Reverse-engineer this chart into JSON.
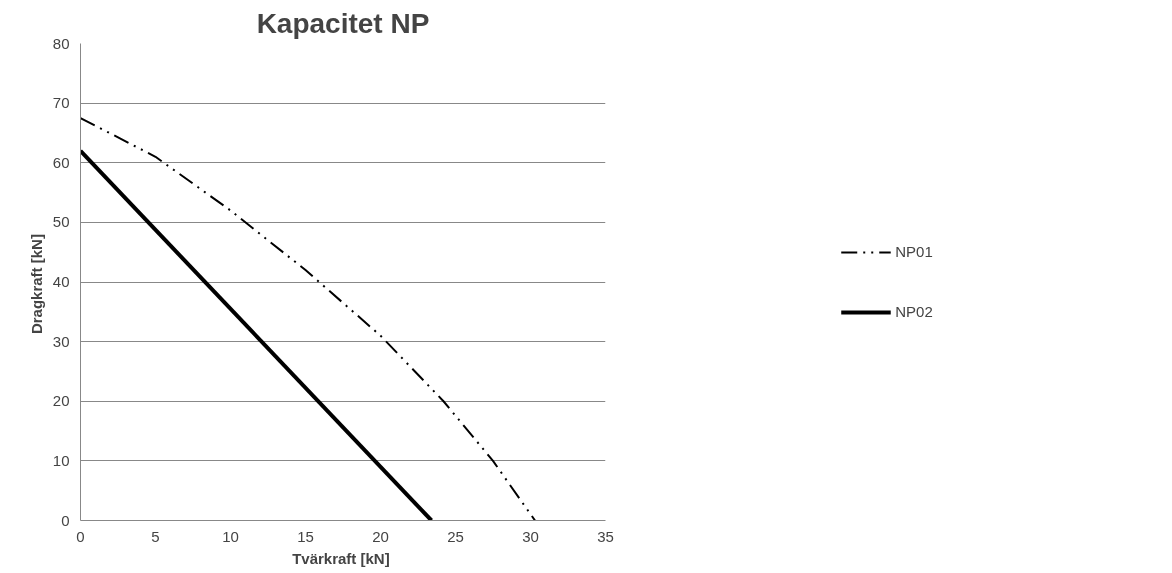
{
  "chart_data": {
    "type": "line",
    "title": "Kapacitet NP",
    "xlabel": "Tvärkraft  [kN]",
    "ylabel": "Dragkraft  [kN]",
    "series": [
      {
        "name": "NP01",
        "color": "#000000",
        "line_style": "dashed",
        "x": [
          0,
          5,
          10,
          15,
          20,
          24.2,
          27.5,
          30.3
        ],
        "values": [
          67.5,
          61,
          52,
          42,
          31,
          20,
          10,
          0
        ]
      },
      {
        "name": "NP02",
        "color": "#000000",
        "line_style": "solid",
        "x": [
          0,
          23.4
        ],
        "values": [
          62,
          0
        ]
      }
    ],
    "xlim": [
      0,
      35
    ],
    "xticks": [
      0,
      5,
      10,
      15,
      20,
      25,
      30,
      35
    ],
    "ylim": [
      0,
      80
    ],
    "yticks": [
      0,
      10,
      20,
      30,
      40,
      50,
      60,
      70,
      80
    ],
    "grid": "y",
    "legend": "right",
    "marker": "none"
  }
}
